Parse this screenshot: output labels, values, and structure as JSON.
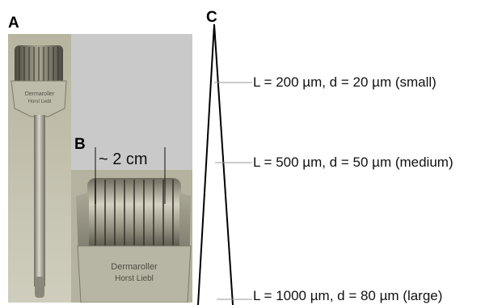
{
  "labels": {
    "panel_a": "A",
    "panel_b": "B",
    "panel_c": "C",
    "scale": "~ 2 cm",
    "brand_line1": "Dermaroller",
    "brand_line2": "Horst Liebl"
  },
  "needles": [
    {
      "text": "L = 200 µm, d = 20 µm (small)"
    },
    {
      "text": "L = 500 µm, d = 50 µm (medium)"
    },
    {
      "text": "L = 1000 µm, d = 80 µm (large)"
    }
  ],
  "colors": {
    "photo_bg": "#c9c9c9",
    "metal_light": "#c8c6b8",
    "metal_mid": "#8f8c7c",
    "metal_dark": "#4a483f",
    "leader_line": "#9a9a9a"
  }
}
